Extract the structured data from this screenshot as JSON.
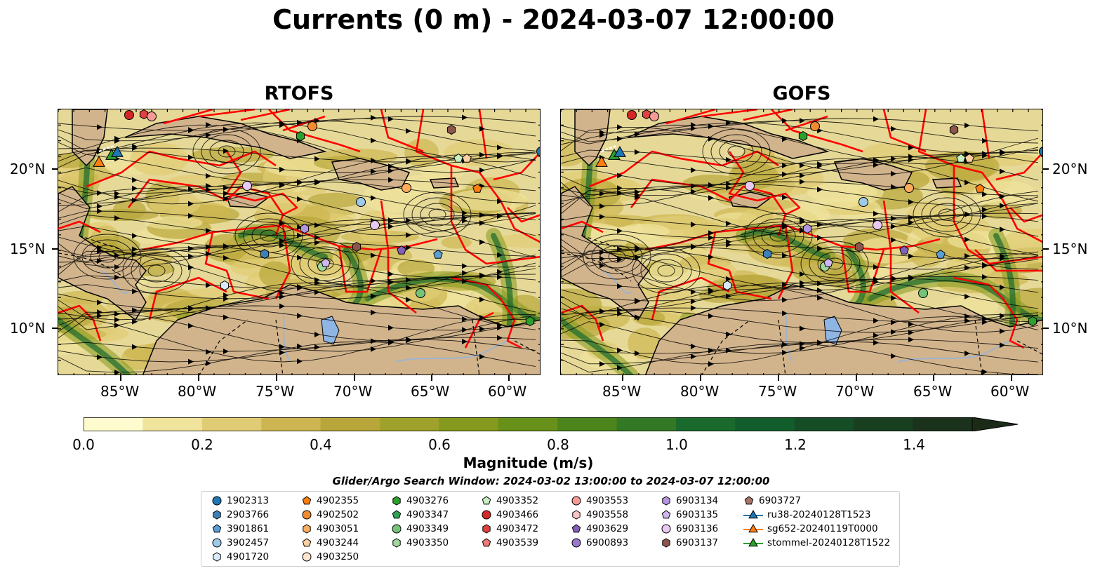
{
  "title": "Currents (0 m) - 2024-03-07 12:00:00",
  "panels": [
    {
      "title": "RTOFS"
    },
    {
      "title": "GOFS"
    }
  ],
  "lon_ticks": [
    "85°W",
    "80°W",
    "75°W",
    "70°W",
    "65°W",
    "60°W"
  ],
  "lat_ticks": [
    "20°N",
    "15°N",
    "10°N"
  ],
  "colorbar": {
    "label": "Magnitude (m/s)",
    "ticks": [
      "0.0",
      "0.2",
      "0.4",
      "0.6",
      "0.8",
      "1.0",
      "1.2",
      "1.4"
    ],
    "min": 0.0,
    "max": 1.5,
    "colors": [
      "#fefccf",
      "#f0e39b",
      "#e0cc74",
      "#cdb651",
      "#b8a63a",
      "#9fa22a",
      "#84991e",
      "#679118",
      "#4c851c",
      "#337825",
      "#1b6a2d",
      "#125d2c",
      "#154d27",
      "#193f21",
      "#1b321c"
    ]
  },
  "search_window": "Glider/Argo Search Window: 2024-03-02 13:00:00 to 2024-03-07 12:00:00",
  "legend": [
    {
      "label": "1902313",
      "marker": "circle",
      "color": "#1f77b4"
    },
    {
      "label": "2903766",
      "marker": "hexagon",
      "color": "#3b80b9"
    },
    {
      "label": "3901861",
      "marker": "pentagon",
      "color": "#5c9fd6"
    },
    {
      "label": "3902457",
      "marker": "circle",
      "color": "#9ecae9"
    },
    {
      "label": "4901720",
      "marker": "hexagon",
      "color": "#dbeafb"
    },
    {
      "label": "4902355",
      "marker": "pentagon",
      "color": "#ff7f0e"
    },
    {
      "label": "4902502",
      "marker": "circle",
      "color": "#f28a30"
    },
    {
      "label": "4903051",
      "marker": "hexagon",
      "color": "#fdac5e"
    },
    {
      "label": "4903244",
      "marker": "pentagon",
      "color": "#fdd0a2"
    },
    {
      "label": "4903250",
      "marker": "circle",
      "color": "#fee6ce"
    },
    {
      "label": "4903276",
      "marker": "hexagon",
      "color": "#2ca02c"
    },
    {
      "label": "4903347",
      "marker": "pentagon",
      "color": "#31a354"
    },
    {
      "label": "4903349",
      "marker": "circle",
      "color": "#74c476"
    },
    {
      "label": "4903350",
      "marker": "hexagon",
      "color": "#a1d99b"
    },
    {
      "label": "4903352",
      "marker": "pentagon",
      "color": "#c7f0c0"
    },
    {
      "label": "4903466",
      "marker": "circle",
      "color": "#d62728"
    },
    {
      "label": "4903472",
      "marker": "hexagon",
      "color": "#e0403f"
    },
    {
      "label": "4903539",
      "marker": "pentagon",
      "color": "#f07a78"
    },
    {
      "label": "4903553",
      "marker": "circle",
      "color": "#f49a97"
    },
    {
      "label": "4903558",
      "marker": "hexagon",
      "color": "#fbc4c3"
    },
    {
      "label": "4903629",
      "marker": "pentagon",
      "color": "#8460b8"
    },
    {
      "label": "6900893",
      "marker": "circle",
      "color": "#9a79cc"
    },
    {
      "label": "6903134",
      "marker": "hexagon",
      "color": "#b294e0"
    },
    {
      "label": "6903135",
      "marker": "pentagon",
      "color": "#d0b6ee"
    },
    {
      "label": "6903136",
      "marker": "circle",
      "color": "#e8c9f2"
    },
    {
      "label": "6903137",
      "marker": "hexagon",
      "color": "#8c564b"
    },
    {
      "label": "6903727",
      "marker": "pentagon",
      "color": "#a87568"
    },
    {
      "label": "ru38-20240128T1523",
      "marker": "triangle-line",
      "color": "#1f77b4"
    },
    {
      "label": "sg652-20240119T0000",
      "marker": "triangle-line",
      "color": "#ff7f0e"
    },
    {
      "label": "stommel-20240128T1522",
      "marker": "triangle-line",
      "color": "#2ca02c"
    }
  ],
  "map_extent": {
    "lon": [
      -89,
      -58
    ],
    "lat": [
      7,
      24
    ]
  },
  "land_color": "#d2b48c",
  "boundary_color": "#ff0000"
}
